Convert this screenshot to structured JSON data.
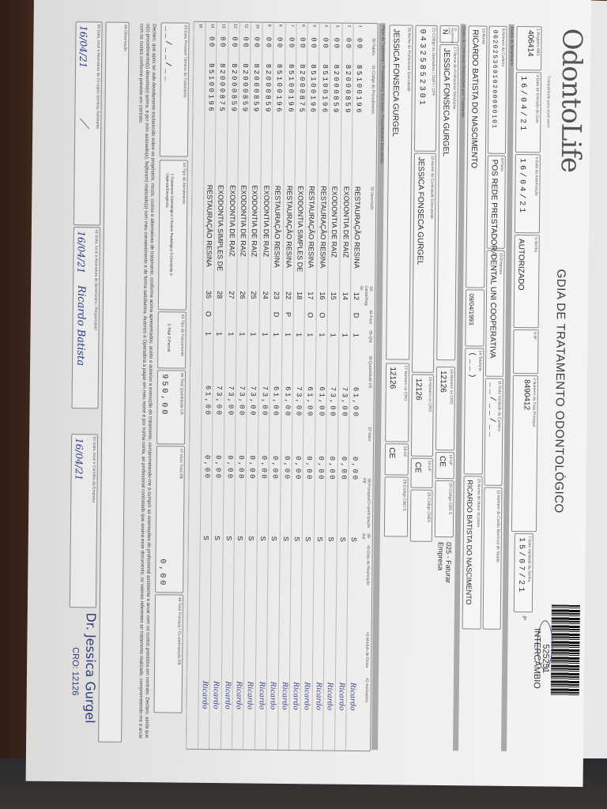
{
  "header": {
    "logo_text": "OdontoLife",
    "logo_tagline": "Tranquilidade para você sorrir",
    "title": "GDIA DE TRATAMENTO ODONTOLÓGICO",
    "barcode_number": "525251",
    "barcode_label": "INTERCÂMBIO"
  },
  "guide": {
    "registro_ans": {
      "label": "1-Registro ANS",
      "value": "406414"
    },
    "data_emissao": {
      "label": "3-Data de Emissão da Guia",
      "value": "16/04/21"
    },
    "data_autorizacao": {
      "label": "4-Data da Autorização",
      "value": "16/04/21"
    },
    "senha": {
      "label": "5-Senha",
      "value": "AUTORIZADO"
    },
    "campo6": {
      "label": "6-Nº"
    },
    "guia_principal": {
      "label": "2-Número da Guia Principal",
      "value": "8490412"
    },
    "validade_senha": {
      "label": "7-Data Validade da Senha",
      "value": "15/07/21"
    },
    "via": "3ª"
  },
  "beneficiary": {
    "section": "Dados do Beneficiário",
    "carteira": {
      "label": "8-Número da Carteira",
      "value": "00202536910200000101"
    },
    "plano": {
      "label": "9-Plano",
      "value": "POS REDE PRESTADORA"
    },
    "empresa": {
      "label": "10-Empresa",
      "value": "DENTAL UNI COOPERATIVA"
    },
    "validade_carteira": {
      "label": "11-Data Validade da Carteira",
      "value": "__/__/__"
    },
    "cns": {
      "label": "12-Número do Cartão Nacional de Saúde"
    },
    "nome": {
      "label": "13-Nome",
      "value": "RICARDO BATISTA DO NASCIMENTO"
    },
    "nascimento": {
      "value": "09/04/1993"
    },
    "telefone": {
      "label": "14-Telefone",
      "value": "(__)"
    },
    "titular": {
      "label": "15-Nome do titular do plano",
      "value": "RICARDO BATISTA DO NASCIMENTO"
    }
  },
  "contractor": {
    "section": "Dados do Contratado Responsável pelo Tratamento",
    "rn": {
      "label": "16-Atendimento a RN",
      "value": "N"
    },
    "solicitante": {
      "label": "17-Nome do Profissional Solicitante",
      "value": "JESSICA FONSECA GURGEL"
    },
    "cro_sol": {
      "label": "18-Número no CRO",
      "value": "12126"
    },
    "uf_sol": {
      "label": "19-UF",
      "value": "CE"
    },
    "cbo_sol": {
      "label": "20-Código CBO S"
    },
    "faturar": "025 - Faturar Empresa",
    "codigo_operadora": {
      "label": "21-Código na Operadora / CNPJ / CPF",
      "value": "04325852301"
    },
    "contratado": {
      "label": "22-Nome do Contratado Executante",
      "value": "JESSICA FONSECA GURGEL"
    },
    "cro_con": {
      "label": "23-Número no CRO",
      "value": "12126"
    },
    "uf_con": {
      "label": "24-UF",
      "value": "CE"
    },
    "cnes": {
      "label": "25-Código CNES"
    },
    "executante": {
      "label": "26-Nome do Profissional Executante",
      "value": "JESSICA FONSECA GURGEL"
    },
    "cro_exe": {
      "label": "27-Número no CRO",
      "value": "12126"
    },
    "uf_exe": {
      "label": "28-UF",
      "value": "CE"
    },
    "cbo_exe": {
      "label": "29-Código CBO S"
    }
  },
  "plan": {
    "section": "Plano de Tratamento / Procedimentos Solicitados / Procedimentos Executados",
    "columns": [
      "30-Tabela",
      "31-Código do Procedimento",
      "32-Descrição",
      "33-Dente/Região",
      "34-Face",
      "35-Qtd",
      "36-Quantidade US",
      "37-Valor",
      "38-Franquia/Co-participação R$",
      "39-Aut",
      "40-Data de Realização",
      "41-Módulo de Glosa",
      "42-Assinatura"
    ],
    "rows": [
      {
        "n": "1",
        "tabela": "00",
        "codigo": "85100196",
        "descricao": "RESTAURAÇÃO RESINA",
        "dente": "12",
        "face": "D",
        "qtd": "1",
        "us": "61,00",
        "valor": "0,00",
        "aut": "S",
        "assinatura": "Ricardo"
      },
      {
        "n": "2",
        "tabela": "00",
        "codigo": "82000859",
        "descricao": "EXODONTIA DE RAIZ",
        "dente": "14",
        "face": "",
        "qtd": "1",
        "us": "73,00",
        "valor": "0,00",
        "aut": "S",
        "assinatura": "Ricardo"
      },
      {
        "n": "3",
        "tabela": "00",
        "codigo": "82000859",
        "descricao": "EXODONTIA DE RAIZ",
        "dente": "15",
        "face": "",
        "qtd": "1",
        "us": "73,00",
        "valor": "0,00",
        "aut": "S",
        "assinatura": "Ricardo"
      },
      {
        "n": "4",
        "tabela": "00",
        "codigo": "85100196",
        "descricao": "RESTAURAÇÃO RESINA",
        "dente": "16",
        "face": "O",
        "qtd": "1",
        "us": "61,00",
        "valor": "0,00",
        "aut": "S",
        "assinatura": "Ricardo"
      },
      {
        "n": "5",
        "tabela": "00",
        "codigo": "85100196",
        "descricao": "RESTAURAÇÃO RESINA",
        "dente": "17",
        "face": "O",
        "qtd": "1",
        "us": "61,00",
        "valor": "0,00",
        "aut": "S",
        "assinatura": "Ricardo"
      },
      {
        "n": "6",
        "tabela": "00",
        "codigo": "82000875",
        "descricao": "EXODONTIA SIMPLES DE",
        "dente": "18",
        "face": "",
        "qtd": "1",
        "us": "73,00",
        "valor": "0,00",
        "aut": "S",
        "assinatura": "Ricardo"
      },
      {
        "n": "7",
        "tabela": "00",
        "codigo": "85100196",
        "descricao": "RESTAURAÇÃO RESINA",
        "dente": "22",
        "face": "P",
        "qtd": "1",
        "us": "61,00",
        "valor": "0,00",
        "aut": "S",
        "assinatura": "Ricardo"
      },
      {
        "n": "8",
        "tabela": "00",
        "codigo": "85100196",
        "descricao": "RESTAURAÇÃO RESINA",
        "dente": "23",
        "face": "D",
        "qtd": "1",
        "us": "61,00",
        "valor": "0,00",
        "aut": "S",
        "assinatura": "Ricardo"
      },
      {
        "n": "9",
        "tabela": "00",
        "codigo": "82000859",
        "descricao": "EXODONTIA DE RAIZ",
        "dente": "24",
        "face": "",
        "qtd": "1",
        "us": "73,00",
        "valor": "0,00",
        "aut": "S",
        "assinatura": "Ricardo"
      },
      {
        "n": "10",
        "tabela": "00",
        "codigo": "82000859",
        "descricao": "EXODONTIA DE RAIZ",
        "dente": "25",
        "face": "",
        "qtd": "1",
        "us": "73,00",
        "valor": "0,00",
        "aut": "S",
        "assinatura": "Ricardo"
      },
      {
        "n": "11",
        "tabela": "00",
        "codigo": "82000859",
        "descricao": "EXODONTIA DE RAIZ",
        "dente": "26",
        "face": "",
        "qtd": "1",
        "us": "73,00",
        "valor": "0,00",
        "aut": "S",
        "assinatura": "Ricardo"
      },
      {
        "n": "12",
        "tabela": "00",
        "codigo": "82000859",
        "descricao": "EXODONTIA DE RAIZ",
        "dente": "27",
        "face": "",
        "qtd": "1",
        "us": "73,00",
        "valor": "0,00",
        "aut": "S",
        "assinatura": "Ricardo"
      },
      {
        "n": "13",
        "tabela": "00",
        "codigo": "82000875",
        "descricao": "EXODONTIA SIMPLES DE",
        "dente": "28",
        "face": "",
        "qtd": "1",
        "us": "73,00",
        "valor": "0,00",
        "aut": "S",
        "assinatura": "Ricardo"
      },
      {
        "n": "14",
        "tabela": "00",
        "codigo": "85100196",
        "descricao": "RESTAURAÇÃO RESINA",
        "dente": "35",
        "face": "O",
        "qtd": "1",
        "us": "61,00",
        "valor": "0,00",
        "aut": "S",
        "assinatura": "Ricardo"
      },
      {
        "n": "15",
        "tabela": "",
        "codigo": "",
        "descricao": "",
        "dente": "",
        "face": "",
        "qtd": "",
        "us": "",
        "valor": "",
        "aut": "",
        "assinatura": ""
      }
    ]
  },
  "footer": {
    "termino": {
      "label": "43-Data Provável Término do Tratamento",
      "value": "__/__/__"
    },
    "tipo_atendimento": {
      "label": "44-Tipo de Atendimento",
      "options": "1-Tratamento Odontológico  2-Exame Radiológico  3-Ortodontia  4-Urgência/Emergência"
    },
    "tipo_faturamento": {
      "label": "45-Tipo de Faturamento",
      "options": "1-Total  2-Parcial"
    },
    "total_us": {
      "label": "46-Total Quantidade US",
      "value": "950,00"
    },
    "valor_total": {
      "label": "47-Valor Total R$",
      "value": "0,00"
    },
    "total_franquia": {
      "label": "48-Total Franquia / Co-participação R$"
    },
    "declaration": "Declaro, que após ter sido devidamente esclarecido sobre os propósitos, riscos, custos e alternativas de tratamento, conforme acima apresentados, aceito e autorizo a execução do tratamento, comprometendo-me a cumprir as orientações do profissional assistente e arcar com os custos previstos em contrato. Declaro, ainda que o(s) procedimento(s) descrito(s) acima, e por mim assinado(s), foi(foram) realizado(s) com meu consentimento e de forma satisfatória. Autorizo a Operadora a pagar em meu nome e por minha conta, ao profissional contratado que assina esse documento, os valores referentes ao tratamento realizado, comprometendo-me a arcar com os custos conforme previsto em contrato.",
    "observacao": {
      "label": "49-Observação"
    },
    "sig_dentista": {
      "label": "50-Data, local e Assinatura do Cirurgião-Dentista Solicitante",
      "value": "16/04/21"
    },
    "sig_beneficiario": {
      "label": "51-Data, local e Assinatura do Beneficiário / Responsável",
      "value": "16/04/21",
      "signature": "Ricardo Batista"
    },
    "sig_empresa": {
      "label": "52-Data, local e Carimbo da Empresa",
      "value": "16/04/21"
    },
    "stamp_name": "Dr. Jessica Gurgel",
    "stamp_cro": "CRO: 12126"
  }
}
